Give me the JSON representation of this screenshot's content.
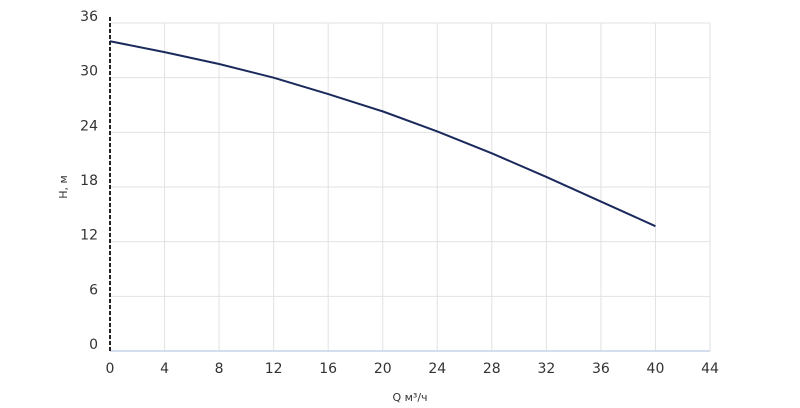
{
  "chart_data": {
    "type": "line",
    "x_label": "Q м³/ч",
    "y_label": "H, м",
    "x": [
      0,
      4,
      8,
      12,
      16,
      20,
      24,
      28,
      32,
      36,
      40
    ],
    "series": [
      {
        "name": null,
        "color": "#1b2a5c",
        "values": [
          34,
          32.8,
          31.5,
          30,
          28.2,
          26.3,
          24.1,
          21.7,
          19.1,
          16.4,
          13.7
        ]
      }
    ],
    "xlim": [
      0,
      44
    ],
    "xticks": [
      0,
      4,
      8,
      12,
      16,
      20,
      24,
      28,
      32,
      36,
      40,
      44
    ],
    "ylim": [
      0,
      36
    ],
    "yticks": [
      0,
      6,
      12,
      18,
      24,
      30,
      36
    ],
    "grid": true
  }
}
